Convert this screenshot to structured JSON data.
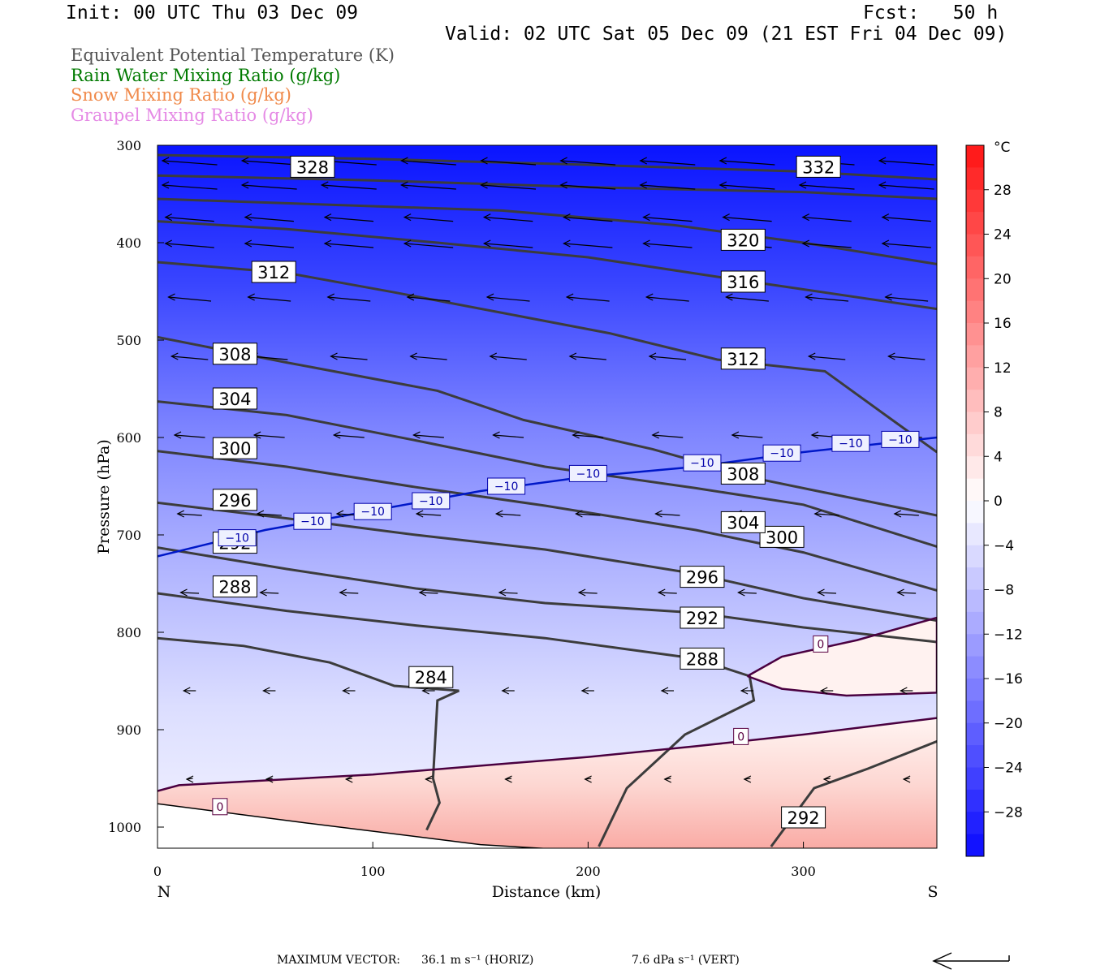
{
  "header": {
    "init": "Init: 00 UTC Thu 03 Dec 09",
    "fcst": "Fcst:   50 h",
    "valid": "Valid: 02 UTC Sat 05 Dec 09 (21 EST Fri 04 Dec 09)"
  },
  "legend": [
    {
      "label": "Equivalent Potential Temperature (K)",
      "color": "#555555"
    },
    {
      "label": "Rain Water Mixing Ratio (g/kg)",
      "color": "#007a00"
    },
    {
      "label": "Snow Mixing Ratio (g/kg)",
      "color": "#f08a4b"
    },
    {
      "label": "Graupel Mixing Ratio (g/kg)",
      "color": "#e58ae5"
    }
  ],
  "footer": {
    "max_vector_label": "MAXIMUM VECTOR:",
    "horiz": "36.1 m s⁻¹ (HORIZ)",
    "vert": "7.6 dPa s⁻¹ (VERT)"
  },
  "chart_data": {
    "type": "cross-section",
    "xlabel": "Distance (km)",
    "ylabel": "Pressure (hPa)",
    "xlim": [
      0,
      362
    ],
    "ylim": [
      1025,
      300
    ],
    "x_ticks": [
      0,
      100,
      200,
      300
    ],
    "y_ticks": [
      300,
      400,
      500,
      600,
      700,
      800,
      900,
      1000
    ],
    "x_end_labels": {
      "left": "N",
      "right": "S"
    },
    "colorbar": {
      "unit": "°C",
      "ticks": [
        28,
        24,
        20,
        16,
        12,
        8,
        4,
        0,
        -4,
        -8,
        -12,
        -16,
        -20,
        -24,
        -28
      ],
      "range": [
        -32,
        32
      ]
    },
    "temperature_field": {
      "surface_temp_c": [
        [
          0,
          -8
        ],
        [
          50,
          -5
        ],
        [
          100,
          -2
        ],
        [
          150,
          2
        ],
        [
          200,
          4
        ],
        [
          250,
          6
        ],
        [
          300,
          8
        ],
        [
          362,
          10
        ]
      ],
      "ter_temp_c_at_300": [
        [
          0,
          -32
        ],
        [
          362,
          -32
        ]
      ],
      "note_colors": "blue shading = temperature below 0 C, red shading = above 0 C"
    },
    "theta_e_contours": [
      {
        "value": 284,
        "points": [
          [
            0,
            806
          ],
          [
            40,
            814
          ],
          [
            80,
            831
          ],
          [
            110,
            855
          ],
          [
            140,
            860
          ],
          [
            130,
            870
          ],
          [
            128,
            950
          ],
          [
            131,
            975
          ],
          [
            125,
            1003
          ]
        ],
        "labels": [
          [
            127,
            846
          ]
        ]
      },
      {
        "value": 288,
        "points": [
          [
            0,
            760
          ],
          [
            60,
            778
          ],
          [
            120,
            793
          ],
          [
            180,
            806
          ],
          [
            250,
            827
          ],
          [
            275,
            845
          ],
          [
            277,
            870
          ],
          [
            245,
            905
          ],
          [
            218,
            960
          ],
          [
            205,
            1020
          ]
        ],
        "labels": [
          [
            36,
            753
          ],
          [
            253,
            827
          ]
        ]
      },
      {
        "value": 292,
        "points": [
          [
            0,
            713
          ],
          [
            60,
            735
          ],
          [
            120,
            755
          ],
          [
            180,
            770
          ],
          [
            250,
            780
          ],
          [
            300,
            795
          ],
          [
            362,
            810
          ]
        ],
        "labels": [
          [
            36,
            708
          ],
          [
            253,
            785
          ]
        ]
      },
      {
        "value": 292,
        "points": [
          [
            285,
            1020
          ],
          [
            305,
            960
          ],
          [
            330,
            940
          ],
          [
            362,
            912
          ]
        ],
        "labels": [
          [
            300,
            990
          ]
        ]
      },
      {
        "value": 296,
        "points": [
          [
            0,
            667
          ],
          [
            60,
            683
          ],
          [
            120,
            700
          ],
          [
            180,
            715
          ],
          [
            250,
            740
          ],
          [
            300,
            765
          ],
          [
            362,
            788
          ]
        ],
        "labels": [
          [
            36,
            664
          ],
          [
            253,
            743
          ]
        ]
      },
      {
        "value": 300,
        "points": [
          [
            0,
            614
          ],
          [
            60,
            630
          ],
          [
            120,
            651
          ],
          [
            180,
            670
          ],
          [
            250,
            695
          ],
          [
            300,
            718
          ],
          [
            362,
            757
          ]
        ],
        "labels": [
          [
            36,
            611
          ],
          [
            290,
            702
          ]
        ]
      },
      {
        "value": 304,
        "points": [
          [
            0,
            563
          ],
          [
            60,
            577
          ],
          [
            120,
            603
          ],
          [
            180,
            630
          ],
          [
            250,
            652
          ],
          [
            300,
            669
          ],
          [
            362,
            712
          ]
        ],
        "labels": [
          [
            36,
            560
          ],
          [
            272,
            687
          ]
        ]
      },
      {
        "value": 308,
        "points": [
          [
            0,
            497
          ],
          [
            60,
            523
          ],
          [
            130,
            552
          ],
          [
            170,
            582
          ],
          [
            230,
            612
          ],
          [
            280,
            643
          ],
          [
            362,
            680
          ]
        ],
        "labels": [
          [
            36,
            514
          ],
          [
            272,
            637
          ]
        ]
      },
      {
        "value": 312,
        "points": [
          [
            0,
            420
          ],
          [
            60,
            431
          ],
          [
            110,
            451
          ],
          [
            160,
            472
          ],
          [
            210,
            493
          ],
          [
            260,
            520
          ],
          [
            310,
            532
          ],
          [
            340,
            580
          ],
          [
            362,
            615
          ]
        ],
        "labels": [
          [
            54,
            430
          ],
          [
            272,
            519
          ]
        ]
      },
      {
        "value": 316,
        "points": [
          [
            0,
            378
          ],
          [
            60,
            386
          ],
          [
            130,
            400
          ],
          [
            200,
            415
          ],
          [
            260,
            435
          ],
          [
            362,
            468
          ]
        ],
        "labels": [
          [
            272,
            440
          ]
        ]
      },
      {
        "value": 320,
        "points": [
          [
            0,
            355
          ],
          [
            80,
            361
          ],
          [
            160,
            367
          ],
          [
            240,
            382
          ],
          [
            300,
            400
          ],
          [
            362,
            422
          ]
        ],
        "labels": [
          [
            272,
            397
          ]
        ]
      },
      {
        "value": 328,
        "points": [
          [
            0,
            331
          ],
          [
            100,
            336
          ],
          [
            200,
            343
          ],
          [
            300,
            348
          ],
          [
            362,
            355
          ]
        ],
        "labels": [
          [
            72,
            322
          ]
        ]
      },
      {
        "value": 332,
        "points": [
          [
            0,
            310
          ],
          [
            100,
            314
          ],
          [
            200,
            320
          ],
          [
            300,
            327
          ],
          [
            362,
            335
          ]
        ],
        "labels": [
          [
            307,
            322
          ]
        ]
      }
    ],
    "isotherm_minus10": {
      "value": -10,
      "points": [
        [
          0,
          722
        ],
        [
          50,
          695
        ],
        [
          100,
          675
        ],
        [
          150,
          655
        ],
        [
          200,
          640
        ],
        [
          250,
          630
        ],
        [
          300,
          615
        ],
        [
          362,
          600
        ]
      ],
      "labels": [
        [
          37,
          703
        ],
        [
          72,
          686
        ],
        [
          100,
          676
        ],
        [
          127,
          665
        ],
        [
          162,
          650
        ],
        [
          200,
          637
        ],
        [
          253,
          626
        ],
        [
          290,
          616
        ],
        [
          322,
          606
        ],
        [
          345,
          602
        ]
      ]
    },
    "freezing_line": {
      "value": 0,
      "points": [
        [
          0,
          963
        ],
        [
          10,
          957
        ],
        [
          100,
          946
        ],
        [
          200,
          928
        ],
        [
          250,
          917
        ],
        [
          300,
          905
        ],
        [
          362,
          888
        ]
      ],
      "labels": [
        [
          29,
          979
        ],
        [
          271,
          907
        ],
        [
          308,
          812
        ]
      ]
    },
    "freezing_aloft": {
      "value": 0,
      "points": [
        [
          274,
          845
        ],
        [
          290,
          825
        ],
        [
          325,
          808
        ],
        [
          362,
          785
        ],
        [
          362,
          862
        ],
        [
          320,
          865
        ],
        [
          290,
          858
        ],
        [
          274,
          845
        ]
      ]
    },
    "terrain_surface": [
      [
        0,
        976
      ],
      [
        70,
        996
      ],
      [
        150,
        1018
      ],
      [
        180,
        1022
      ],
      [
        362,
        1022
      ]
    ]
  }
}
